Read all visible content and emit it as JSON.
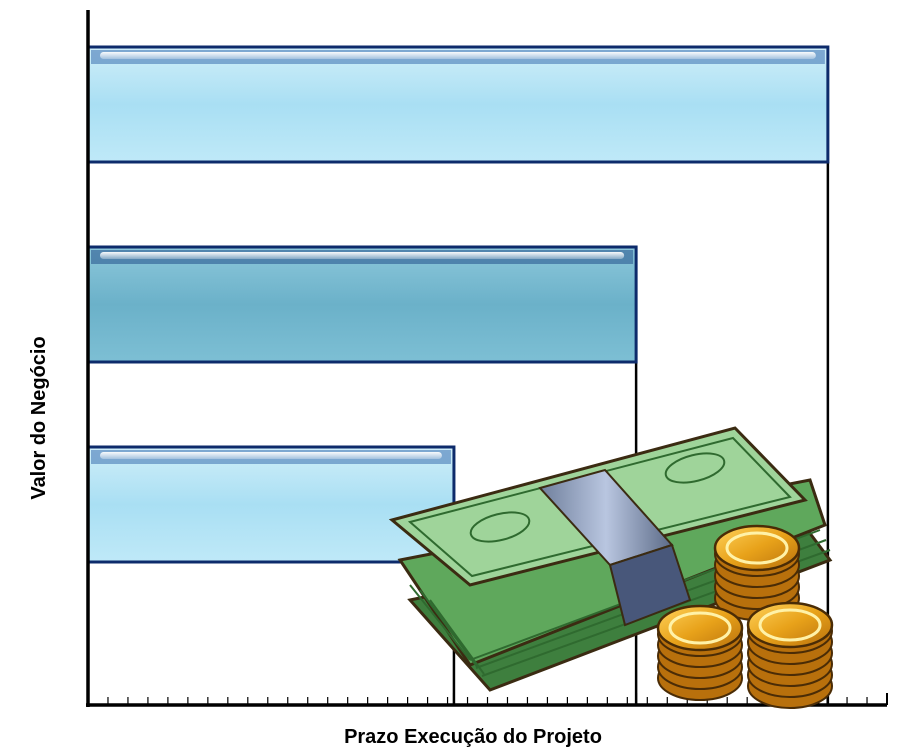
{
  "chart_data": {
    "type": "bar",
    "orientation": "horizontal",
    "xlabel": "Prazo Execução do Projeto",
    "ylabel": "Valor do Negócio",
    "xlim": [
      0,
      100
    ],
    "x_ticks_major": [
      0,
      45.8,
      68.6,
      91.4,
      100
    ],
    "x_minor_tick_step": 2.5,
    "grid": "vertical lines at bar ends",
    "bars": [
      {
        "value": 92.6,
        "fill": "#a9dff3",
        "border": "#0d2b6b",
        "style": "light"
      },
      {
        "value": 68.6,
        "fill": "#6bb1c9",
        "border": "#0d2b6b",
        "style": "dark"
      },
      {
        "value": 45.8,
        "fill": "#a9dff3",
        "border": "#0d2b6b",
        "style": "light"
      }
    ],
    "illustration": "money-stack-and-coins-icon"
  },
  "colors": {
    "axis": "#000000",
    "bar_border": "#0d2b6b",
    "money_green": "#4f9a4f",
    "coin_gold": "#e8a21a"
  }
}
